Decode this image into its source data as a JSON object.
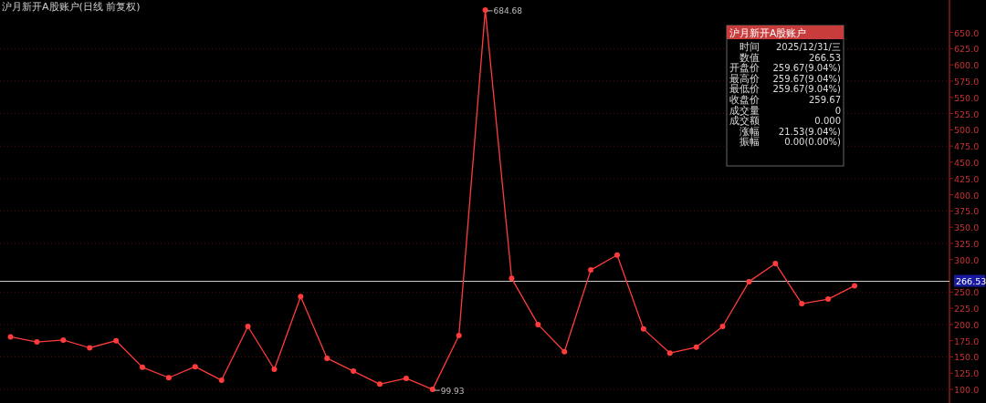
{
  "chart_data": {
    "type": "line",
    "title": "沪月新开A股账户(日线 前复权)",
    "categories": [
      null,
      null,
      null,
      null,
      null,
      null,
      null,
      null,
      null,
      null,
      null,
      null,
      null,
      null,
      null,
      null,
      null,
      null,
      null,
      null,
      null,
      null,
      null,
      null,
      null,
      null,
      null,
      null,
      null,
      null,
      null,
      null,
      null
    ],
    "series": [
      {
        "color": "#ff3b3b",
        "values": [
          181,
          173,
          176,
          164,
          175,
          134,
          118,
          135,
          114,
          197,
          131,
          243,
          148,
          128,
          108,
          117,
          99.93,
          183,
          684.68,
          271,
          200,
          158,
          284,
          307,
          193,
          156,
          165,
          197,
          266,
          294,
          232,
          239,
          259.67
        ]
      }
    ],
    "ylim": [
      79,
      700
    ],
    "yticks": [
      {
        "value": 100,
        "label": "100.0"
      },
      {
        "value": 125,
        "label": "125.0"
      },
      {
        "value": 150,
        "label": "150.0"
      },
      {
        "value": 175,
        "label": "175.0"
      },
      {
        "value": 200,
        "label": "200.0"
      },
      {
        "value": 225,
        "label": "225.0"
      },
      {
        "value": 250,
        "label": "250.0"
      },
      {
        "value": 300,
        "label": "300.0"
      },
      {
        "value": 325,
        "label": "325.0"
      },
      {
        "value": 350,
        "label": "350.0"
      },
      {
        "value": 375,
        "label": "375.0"
      },
      {
        "value": 400,
        "label": "400.0"
      },
      {
        "value": 425,
        "label": "425.0"
      },
      {
        "value": 450,
        "label": "450.0"
      },
      {
        "value": 475,
        "label": "475.0"
      },
      {
        "value": 500,
        "label": "500.0"
      },
      {
        "value": 525,
        "label": "525.0"
      },
      {
        "value": 550,
        "label": "550.0"
      },
      {
        "value": 575,
        "label": "575.0"
      },
      {
        "value": 600,
        "label": "600.0"
      },
      {
        "value": 625,
        "label": "625.0"
      },
      {
        "value": 650,
        "label": "650.0"
      }
    ],
    "grid": "y",
    "marker": "circle",
    "line_style": "solid",
    "tick_labels": "y",
    "ref_lines": [
      {
        "axis": "y",
        "value": 266.53,
        "label": "266.53",
        "color": "#cccccc"
      }
    ],
    "annotations": [
      "684.68",
      "99.93",
      "沪月新开A股账户",
      "时间\t2025/12/31/三",
      "数值\t266.53",
      "开盘价\t259.67(9.04%)",
      "最高价\t259.67(9.04%)",
      "最低价\t259.67(9.04%)",
      "收盘价\t259.67",
      "成交量\t0",
      "成交额\t0.000",
      "涨幅\t21.53(9.04%)",
      "振幅\t0.00(0.00%)"
    ]
  }
}
